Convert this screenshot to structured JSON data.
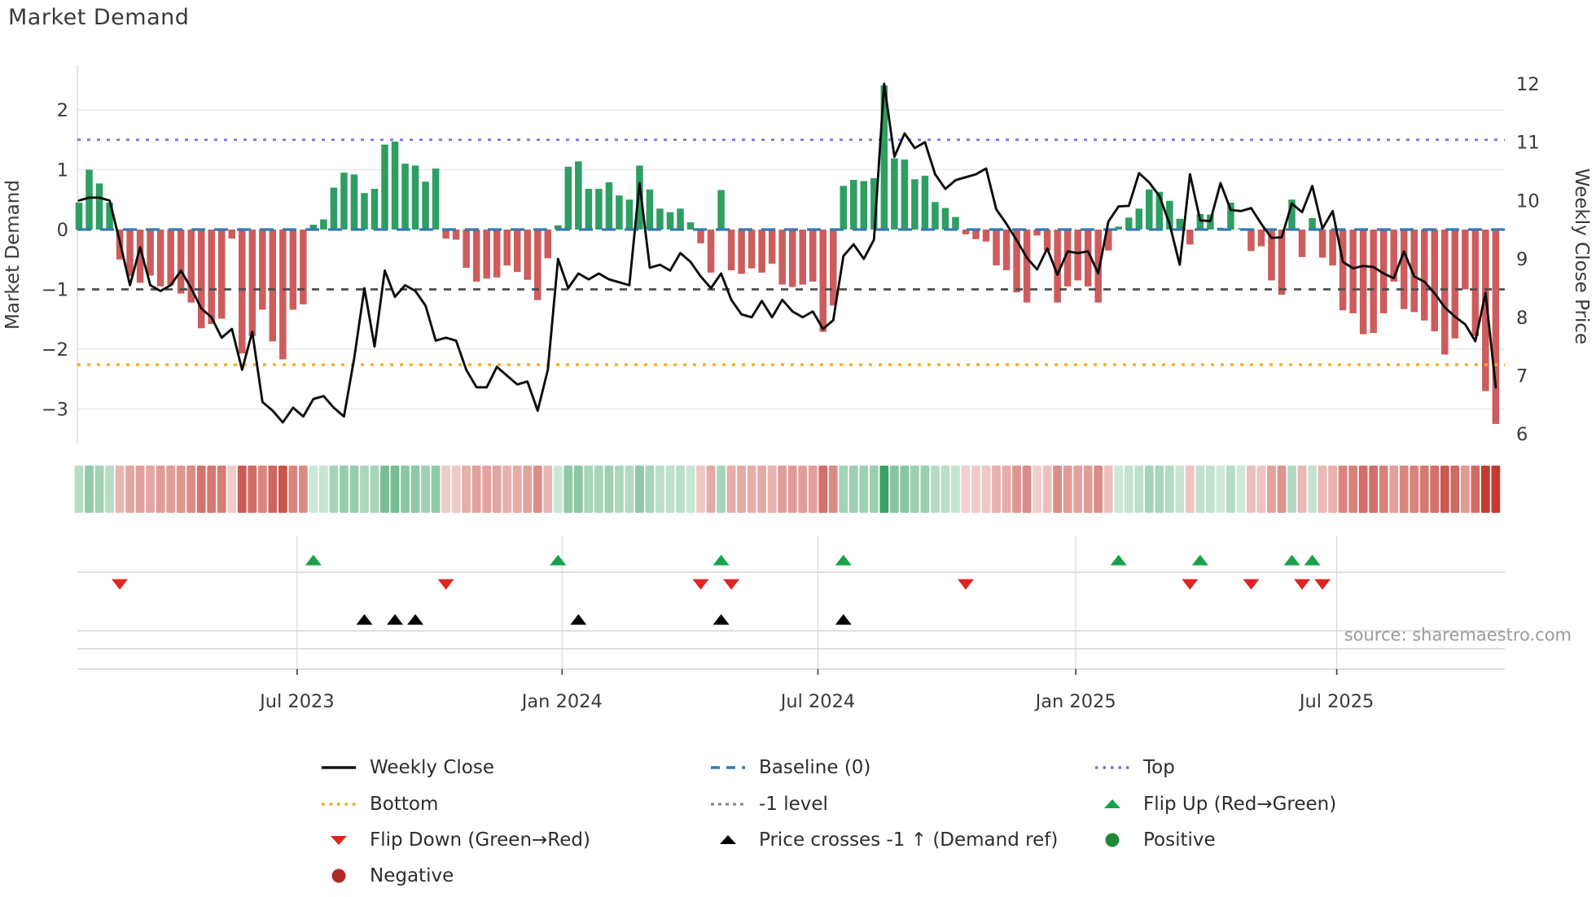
{
  "title": "Market Demand",
  "source": "source: sharemaestro.com",
  "axes": {
    "left": {
      "label": "Market Demand",
      "tick_labels": [
        "2",
        "1",
        "0",
        "−1",
        "−2",
        "−3"
      ],
      "tick_values": [
        2,
        1,
        0,
        -1,
        -2,
        -3
      ]
    },
    "right": {
      "label": "Weekly Close Price",
      "tick_labels": [
        "12",
        "11",
        "10",
        "9",
        "8",
        "7",
        "6"
      ],
      "tick_values": [
        12,
        11,
        10,
        9,
        8,
        7,
        6
      ]
    },
    "x": {
      "tick_labels": [
        "Jul 2023",
        "Jan 2024",
        "Jul 2024",
        "Jan 2025",
        "Jul 2025"
      ],
      "tick_weeks": [
        21.4,
        47.4,
        72.5,
        97.8,
        123.4
      ]
    }
  },
  "chart_data": {
    "type": "combo",
    "x_unit": "week_index",
    "n_weeks": 140,
    "ylim_left": [
      -3.6,
      2.9
    ],
    "ylim_right": [
      5.85,
      12.35
    ],
    "grid": "horizontal_left_axis",
    "reference_lines": [
      {
        "name": "Top",
        "value": 1.5,
        "axis": "left",
        "style": "dotted",
        "color": "#7d70e0"
      },
      {
        "name": "Baseline (0)",
        "value": 0,
        "axis": "left",
        "style": "dashed",
        "color": "#3579b1"
      },
      {
        "name": "-1 level",
        "value": -1,
        "axis": "left",
        "style": "dashed",
        "color": "#4d4d4d"
      },
      {
        "name": "Bottom",
        "value": -2.26,
        "axis": "left",
        "style": "dotted",
        "color": "#f9a825"
      }
    ],
    "series": [
      {
        "name": "Market Demand",
        "type": "bar",
        "axis": "left",
        "positive_color": "#2e9e62",
        "negative_color": "#cd5c5c",
        "values": [
          0.45,
          1.0,
          0.77,
          0.45,
          -0.5,
          -0.78,
          -0.89,
          -0.77,
          -0.95,
          -0.93,
          -1.07,
          -1.22,
          -1.65,
          -1.58,
          -1.49,
          -0.15,
          -2.07,
          -1.78,
          -1.34,
          -1.87,
          -2.17,
          -1.34,
          -1.25,
          0.08,
          0.17,
          0.7,
          0.95,
          0.92,
          0.61,
          0.68,
          1.42,
          1.47,
          1.1,
          1.07,
          0.8,
          1.02,
          -0.15,
          -0.17,
          -0.64,
          -0.87,
          -0.82,
          -0.8,
          -0.6,
          -0.71,
          -0.84,
          -1.18,
          -0.48,
          0.07,
          1.05,
          1.14,
          0.68,
          0.68,
          0.79,
          0.57,
          0.5,
          1.07,
          0.67,
          0.35,
          0.29,
          0.35,
          0.12,
          -0.23,
          -0.72,
          0.66,
          -0.68,
          -0.74,
          -0.65,
          -0.72,
          -0.57,
          -0.92,
          -0.96,
          -0.92,
          -0.87,
          -1.71,
          -1.27,
          0.73,
          0.83,
          0.81,
          0.86,
          2.41,
          1.19,
          1.17,
          0.84,
          0.9,
          0.46,
          0.36,
          0.21,
          -0.08,
          -0.16,
          -0.2,
          -0.6,
          -0.68,
          -1.05,
          -1.22,
          -0.1,
          -0.35,
          -1.22,
          -0.95,
          -0.85,
          -0.95,
          -1.22,
          -0.35,
          0.05,
          0.2,
          0.35,
          0.67,
          0.63,
          0.48,
          0.18,
          -0.25,
          0.26,
          0.25,
          0.03,
          0.45,
          0.02,
          -0.36,
          -0.28,
          -0.85,
          -1.09,
          0.5,
          -0.46,
          0.19,
          -0.47,
          -0.6,
          -1.35,
          -1.4,
          -1.75,
          -1.73,
          -1.4,
          -0.87,
          -1.33,
          -1.38,
          -1.52,
          -1.7,
          -2.09,
          -1.82,
          -1.0,
          -1.78,
          -2.7,
          -3.25
        ]
      },
      {
        "name": "Weekly Close",
        "type": "line",
        "axis": "right",
        "color": "#0d0d0d",
        "values": [
          10.0,
          10.05,
          10.05,
          10.0,
          9.3,
          8.55,
          9.2,
          8.55,
          8.45,
          8.55,
          8.8,
          8.5,
          8.15,
          8.0,
          7.65,
          7.8,
          7.1,
          7.75,
          6.55,
          6.4,
          6.2,
          6.45,
          6.3,
          6.6,
          6.65,
          6.45,
          6.3,
          7.3,
          8.5,
          7.5,
          8.8,
          8.35,
          8.55,
          8.45,
          8.2,
          7.6,
          7.65,
          7.6,
          7.1,
          6.8,
          6.8,
          7.15,
          7.0,
          6.85,
          6.9,
          6.4,
          7.1,
          9.0,
          8.5,
          8.75,
          8.65,
          8.75,
          8.65,
          8.6,
          8.55,
          10.3,
          8.85,
          8.9,
          8.8,
          9.1,
          8.95,
          8.7,
          8.5,
          8.75,
          8.3,
          8.05,
          8.0,
          8.28,
          8.0,
          8.3,
          8.1,
          8.0,
          8.1,
          7.8,
          7.95,
          9.05,
          9.25,
          9.0,
          9.33,
          12.0,
          10.75,
          11.15,
          10.9,
          11.0,
          10.45,
          10.2,
          10.35,
          10.4,
          10.45,
          10.55,
          9.85,
          9.6,
          9.32,
          9.02,
          8.82,
          9.18,
          8.73,
          9.13,
          9.1,
          9.13,
          8.75,
          9.64,
          9.9,
          9.91,
          10.47,
          10.31,
          10.08,
          9.6,
          8.9,
          10.45,
          9.66,
          9.65,
          10.3,
          9.84,
          9.82,
          9.87,
          9.6,
          9.36,
          9.37,
          9.95,
          9.8,
          10.25,
          9.52,
          9.82,
          8.95,
          8.84,
          8.88,
          8.86,
          8.75,
          8.67,
          9.13,
          8.7,
          8.61,
          8.41,
          8.17,
          8.01,
          7.88,
          7.59,
          8.42,
          6.8
        ]
      }
    ],
    "heatmap": {
      "note": "strip colored from Market Demand values",
      "positive_base": "#2e9b5a",
      "negative_base": "#c23c32"
    },
    "markers": {
      "flip_up_weeks": [
        23,
        47,
        63,
        75,
        102,
        110,
        119,
        121
      ],
      "flip_down_weeks": [
        4,
        36,
        61,
        64,
        87,
        109,
        115,
        120,
        122
      ],
      "price_cross_weeks": [
        28,
        31,
        33,
        49,
        63,
        75
      ]
    }
  },
  "legend": [
    {
      "label": "Weekly Close",
      "swatch": "line-black",
      "col": 0,
      "row": 0
    },
    {
      "label": "Bottom",
      "swatch": "dotted-orange",
      "col": 0,
      "row": 1
    },
    {
      "label": "Flip Down (Green→Red)",
      "swatch": "tri-down-red",
      "col": 0,
      "row": 2
    },
    {
      "label": "Negative",
      "swatch": "circle-darkred",
      "col": 0,
      "row": 3
    },
    {
      "label": "Baseline (0)",
      "swatch": "dashed-blue",
      "col": 1,
      "row": 0
    },
    {
      "label": "-1 level",
      "swatch": "dashed-gray",
      "col": 1,
      "row": 1
    },
    {
      "label": "Price crosses -1 ↑ (Demand ref)",
      "swatch": "tri-up-black",
      "col": 1,
      "row": 2
    },
    {
      "label": "Top",
      "swatch": "dotted-purple",
      "col": 2,
      "row": 0
    },
    {
      "label": "Flip Up (Red→Green)",
      "swatch": "tri-up-green",
      "col": 2,
      "row": 1
    },
    {
      "label": "Positive",
      "swatch": "circle-green",
      "col": 2,
      "row": 2
    }
  ],
  "colors": {
    "bar_positive": "#2e9e62",
    "bar_negative": "#cd5c5c",
    "price_line": "#0d0d0d",
    "baseline": "#3579b1",
    "top_line": "#7d70e0",
    "bottom_line": "#f9a825",
    "minus1_line": "#4d4d4d",
    "flip_up": "#17a349",
    "flip_down": "#e02424",
    "price_cross": "#000000",
    "positive_dot": "#1e8b3a",
    "negative_dot": "#b02828",
    "grid": "#e9e9ee",
    "text": "#3a3a3a"
  }
}
